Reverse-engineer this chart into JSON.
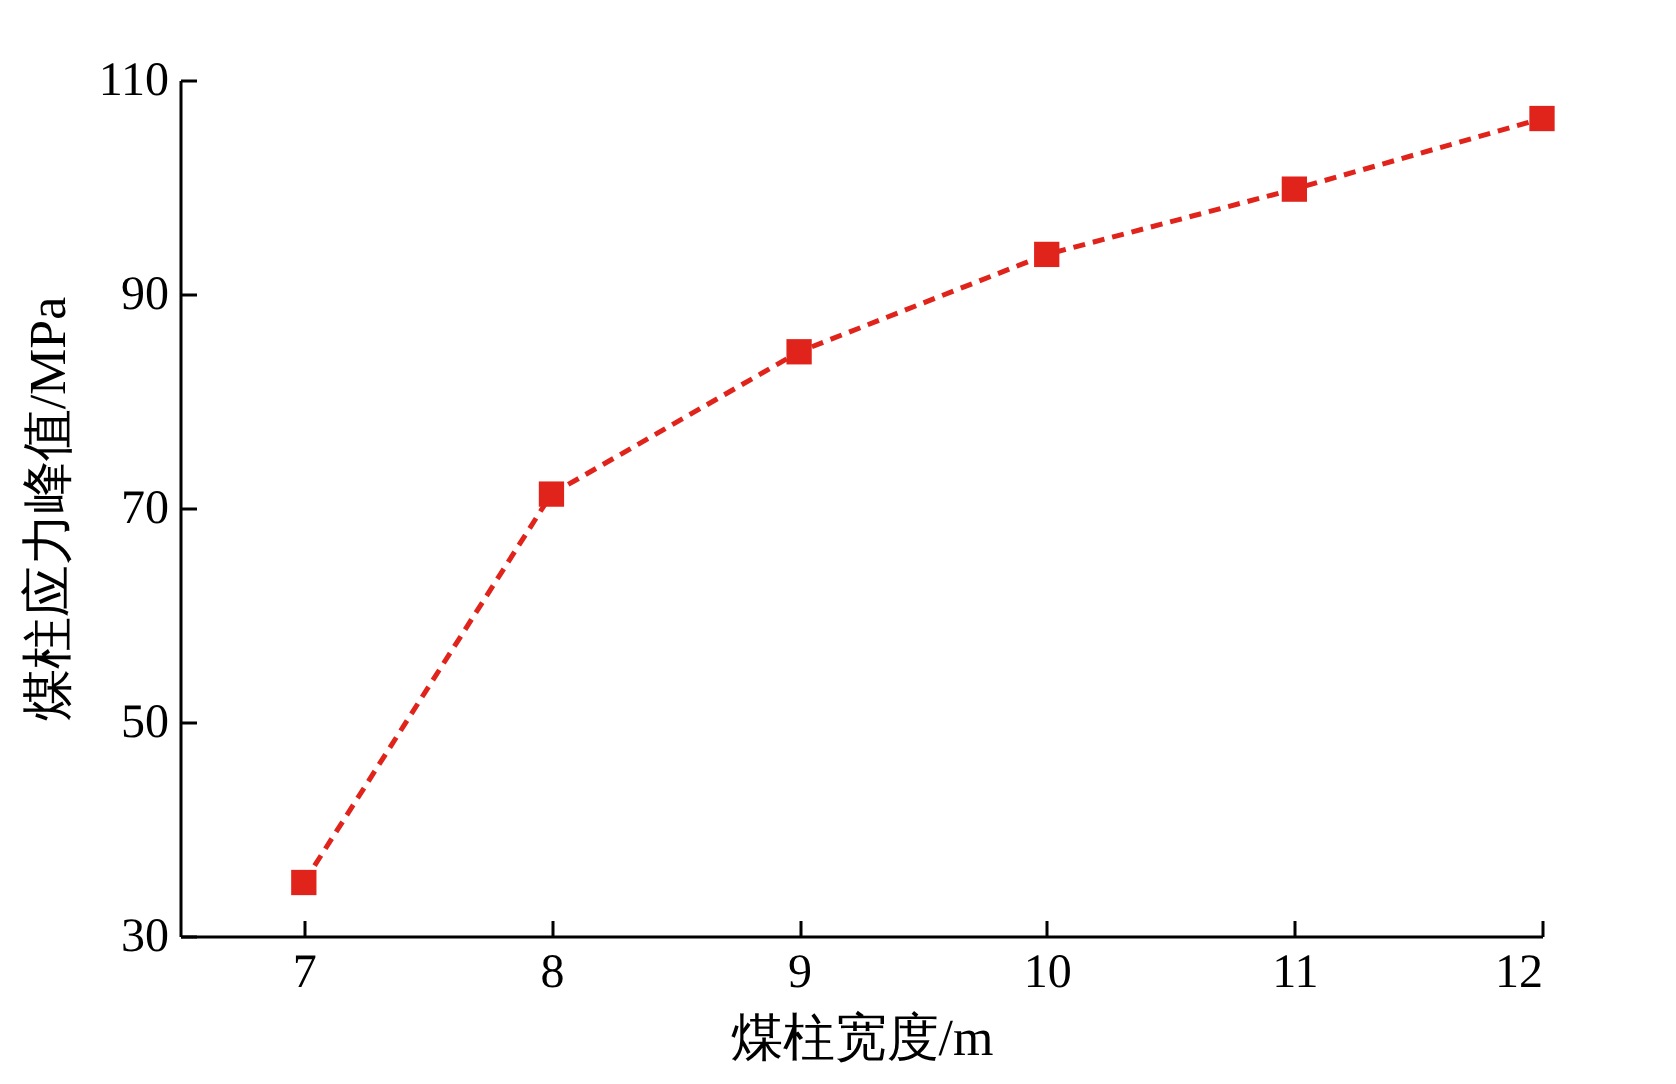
{
  "chart_data": {
    "type": "line",
    "xlabel": "煤柱宽度/m",
    "ylabel": "煤柱应力峰值/MPa",
    "x": [
      7,
      8,
      9,
      10,
      11,
      12
    ],
    "series": [
      {
        "color": "#e0231b",
        "values": [
          35,
          71.3,
          84.6,
          93.7,
          99.8,
          106.4
        ]
      }
    ],
    "xlim": [
      6.5,
      12
    ],
    "xticks": [
      7,
      8,
      9,
      10,
      11,
      12
    ],
    "ylim": [
      30,
      110
    ],
    "yticks": [
      30,
      50,
      70,
      90,
      110
    ],
    "marker": "square",
    "line_style": "dashed",
    "grid": false,
    "legend": false
  }
}
